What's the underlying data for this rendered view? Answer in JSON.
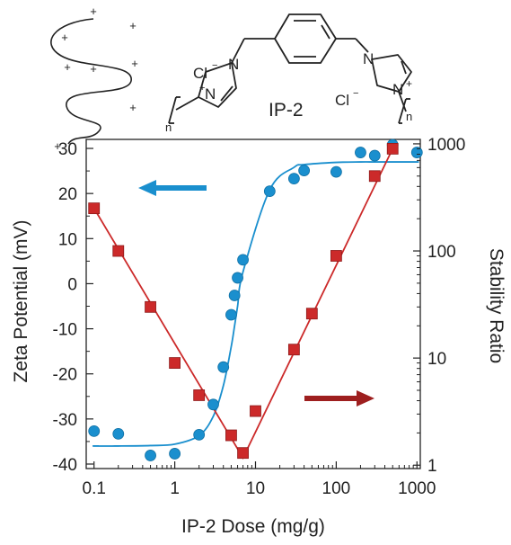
{
  "structure": {
    "label": "IP-2",
    "counterion": "Cl",
    "charge_minus": "−",
    "charge_plus": "+",
    "repeat_n": "n",
    "polymer_charge": "+"
  },
  "chart_data": {
    "type": "scatter",
    "xlabel": "IP-2 Dose (mg/g)",
    "ylabel_left": "Zeta Potential (mV)",
    "ylabel_right": "Stability Ratio",
    "x_scale": "log",
    "xlim": [
      0.08,
      1100
    ],
    "x_ticks": [
      0.1,
      1,
      10,
      100,
      1000
    ],
    "x_tick_labels": [
      "0.1",
      "1",
      "10",
      "100",
      "1000"
    ],
    "ylim_left": [
      -41,
      32
    ],
    "y_ticks_left": [
      30,
      20,
      10,
      0,
      -10,
      -20,
      -30,
      -40
    ],
    "y_tick_labels_left": [
      "30",
      "20",
      "10",
      "0",
      "-10",
      "-20",
      "-30",
      "-40"
    ],
    "y_scale_right": "log",
    "ylim_right": [
      0.93,
      1100
    ],
    "y_ticks_right": [
      1,
      10,
      100,
      1000
    ],
    "y_tick_labels_right": [
      "1",
      "10",
      "100",
      "1000"
    ],
    "grid": false,
    "series": [
      {
        "axis": "left",
        "marker": "circle",
        "color": "#1a8fce",
        "x": [
          0.1,
          0.2,
          0.5,
          1.0,
          2.0,
          3.0,
          4.0,
          5.0,
          5.5,
          6.0,
          7.0,
          15,
          30,
          40,
          100,
          200,
          300,
          500,
          1000
        ],
        "y": [
          -32.7,
          -33.3,
          -38.1,
          -37.7,
          -33.5,
          -26.8,
          -18.5,
          -6.9,
          -2.6,
          1.3,
          5.3,
          20.5,
          23.3,
          25.1,
          24.8,
          29.1,
          28.4,
          30.8,
          29.1
        ],
        "fit_y": [
          -36.0,
          -36.0,
          -35.9,
          -35.6,
          -33.7,
          -29.4,
          -22.6,
          -14.0,
          -9.4,
          -5.0,
          2.6,
          20.8,
          25.8,
          26.4,
          26.9,
          27.0,
          27.0,
          27.0,
          27.0
        ]
      },
      {
        "axis": "right",
        "marker": "square",
        "color": "#cc2a2a",
        "x": [
          0.1,
          0.2,
          0.5,
          1.0,
          2.0,
          5.0,
          7.0,
          10,
          30,
          50,
          100,
          300,
          500
        ],
        "y": [
          250,
          100,
          30,
          9.0,
          4.5,
          1.9,
          1.3,
          3.2,
          12,
          26,
          90,
          500,
          900
        ],
        "fit_x": [
          0.1,
          7.0,
          500
        ],
        "fit_y": [
          250,
          1.17,
          900
        ]
      }
    ],
    "annotations": [
      {
        "type": "arrow",
        "direction": "left",
        "color": "#1a8fce",
        "refers_to": "left axis"
      },
      {
        "type": "arrow",
        "direction": "right",
        "color": "#9e1f1f",
        "refers_to": "right axis"
      }
    ]
  }
}
